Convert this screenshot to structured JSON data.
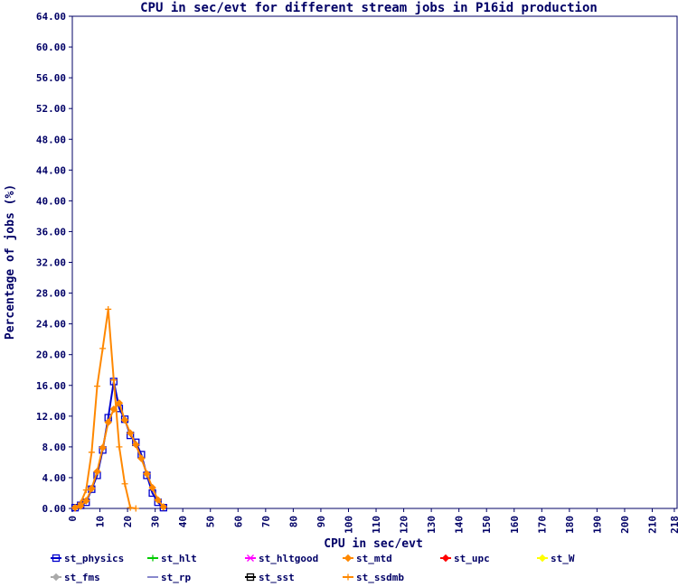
{
  "chart_data": {
    "type": "line",
    "title": "CPU in sec/evt for different stream jobs in P16id production",
    "xlabel": "CPU in sec/evt",
    "ylabel": "Percentage of jobs (%)",
    "xlim": [
      0,
      219
    ],
    "ylim": [
      0,
      64
    ],
    "x_ticks": [
      "0",
      "10",
      "20",
      "30",
      "40",
      "50",
      "60",
      "70",
      "80",
      "90",
      "100",
      "110",
      "120",
      "130",
      "140",
      "150",
      "160",
      "170",
      "180",
      "190",
      "200",
      "210",
      "218"
    ],
    "y_ticks": [
      "0.00",
      "4.00",
      "8.00",
      "12.00",
      "16.00",
      "20.00",
      "24.00",
      "28.00",
      "32.00",
      "36.00",
      "40.00",
      "44.00",
      "48.00",
      "52.00",
      "56.00",
      "60.00",
      "64.00"
    ],
    "grid": false,
    "legend_position": "bottom",
    "series": [
      {
        "name": "st_physics",
        "color": "#0000cc",
        "marker": "square",
        "x": [
          1,
          3,
          5,
          7,
          9,
          11,
          13,
          15,
          17,
          19,
          21,
          23,
          25,
          27,
          29,
          31,
          33
        ],
        "y": [
          0.1,
          0.4,
          0.8,
          2.5,
          4.3,
          7.6,
          11.8,
          16.5,
          13.0,
          11.6,
          9.5,
          8.6,
          7.0,
          4.3,
          2.0,
          0.8,
          0.1
        ]
      },
      {
        "name": "st_hlt",
        "color": "#00cc00",
        "marker": "plus",
        "x": [],
        "y": []
      },
      {
        "name": "st_hltgood",
        "color": "#ff00ff",
        "marker": "cross",
        "x": [],
        "y": []
      },
      {
        "name": "st_mtd",
        "color": "#ff8800",
        "marker": "diamond",
        "x": [
          1,
          3,
          5,
          7,
          9,
          11,
          13,
          15,
          17,
          19,
          21,
          23,
          25,
          27,
          29,
          31,
          33
        ],
        "y": [
          0.1,
          0.3,
          1.0,
          2.6,
          4.8,
          7.9,
          11.2,
          12.9,
          13.7,
          11.5,
          9.8,
          8.3,
          6.5,
          4.5,
          2.7,
          1.1,
          0.2
        ]
      },
      {
        "name": "st_upc",
        "color": "#ff0000",
        "marker": "diamond",
        "x": [],
        "y": []
      },
      {
        "name": "st_W",
        "color": "#ffff00",
        "marker": "diamond",
        "x": [],
        "y": []
      },
      {
        "name": "st_fms",
        "color": "#aaaaaa",
        "marker": "diamond",
        "x": [],
        "y": []
      },
      {
        "name": "st_rp",
        "color": "#8888cc",
        "marker": "line",
        "x": [],
        "y": []
      },
      {
        "name": "st_sst",
        "color": "#000000",
        "marker": "square",
        "x": [],
        "y": []
      },
      {
        "name": "st_ssdmb",
        "color": "#ff8800",
        "marker": "plus",
        "x": [
          1,
          3,
          5,
          7,
          9,
          11,
          13,
          15,
          17,
          19,
          21,
          23
        ],
        "y": [
          0.0,
          0.7,
          2.4,
          7.3,
          15.9,
          20.8,
          25.9,
          16.7,
          8.0,
          3.2,
          0.1,
          0.0
        ]
      }
    ],
    "plot_area_color": "#ffffff",
    "axis_color": "#000066"
  }
}
